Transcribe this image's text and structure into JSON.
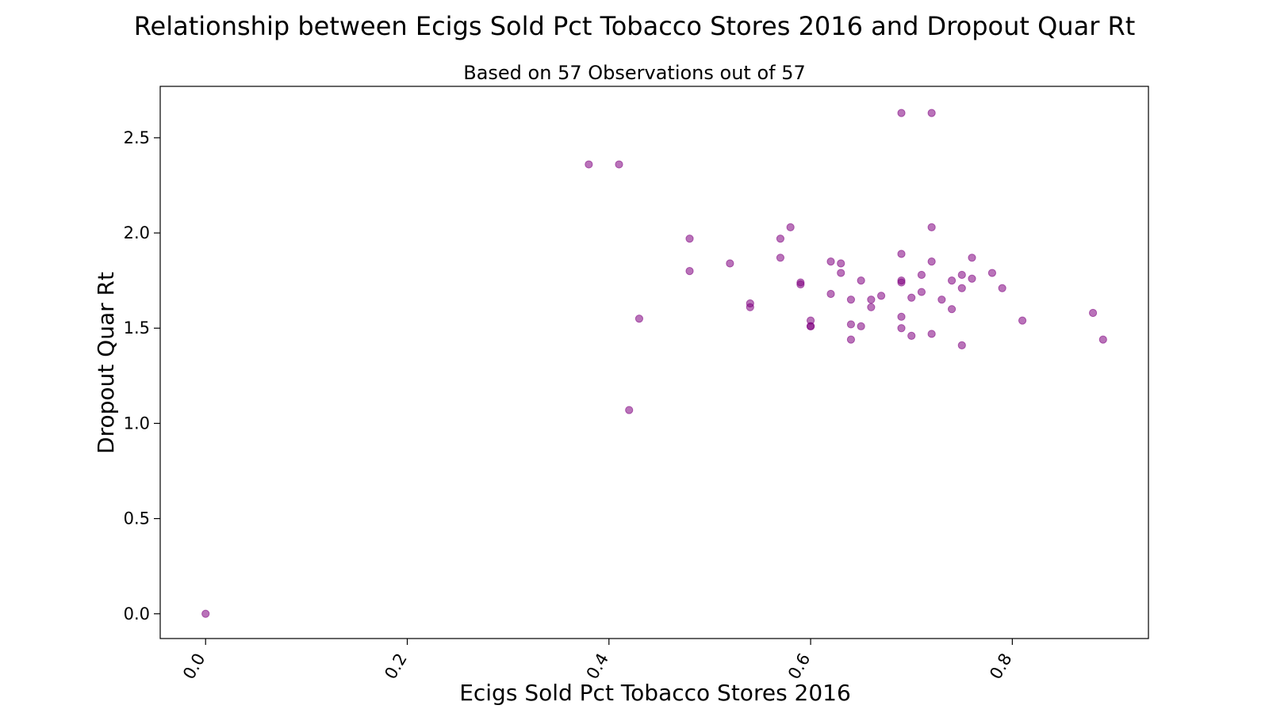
{
  "chart_data": {
    "type": "scatter",
    "title": "Relationship between Ecigs Sold Pct Tobacco Stores 2016 and Dropout Quar Rt",
    "subtitle": "Based on 57 Observations out of 57",
    "xlabel": "Ecigs Sold Pct Tobacco Stores 2016",
    "ylabel": "Dropout Quar Rt",
    "xlim": [
      -0.045,
      0.935
    ],
    "ylim": [
      -0.13,
      2.77
    ],
    "xticks": [
      {
        "value": 0.0,
        "label": "0.0"
      },
      {
        "value": 0.2,
        "label": "0.2"
      },
      {
        "value": 0.4,
        "label": "0.4"
      },
      {
        "value": 0.6,
        "label": "0.6"
      },
      {
        "value": 0.8,
        "label": "0.8"
      }
    ],
    "yticks": [
      {
        "value": 0.0,
        "label": "0.0"
      },
      {
        "value": 0.5,
        "label": "0.5"
      },
      {
        "value": 1.0,
        "label": "1.0"
      },
      {
        "value": 1.5,
        "label": "1.5"
      },
      {
        "value": 2.0,
        "label": "2.0"
      },
      {
        "value": 2.5,
        "label": "2.5"
      }
    ],
    "grid": false,
    "color": "#800080",
    "points": [
      [
        0.0,
        0.0
      ],
      [
        0.38,
        2.36
      ],
      [
        0.41,
        2.36
      ],
      [
        0.42,
        1.07
      ],
      [
        0.43,
        1.55
      ],
      [
        0.48,
        1.97
      ],
      [
        0.48,
        1.8
      ],
      [
        0.52,
        1.84
      ],
      [
        0.54,
        1.63
      ],
      [
        0.54,
        1.61
      ],
      [
        0.57,
        1.97
      ],
      [
        0.57,
        1.87
      ],
      [
        0.58,
        2.03
      ],
      [
        0.59,
        1.74
      ],
      [
        0.59,
        1.73
      ],
      [
        0.6,
        1.54
      ],
      [
        0.6,
        1.51
      ],
      [
        0.6,
        1.51
      ],
      [
        0.62,
        1.85
      ],
      [
        0.62,
        1.68
      ],
      [
        0.63,
        1.84
      ],
      [
        0.63,
        1.79
      ],
      [
        0.64,
        1.65
      ],
      [
        0.64,
        1.52
      ],
      [
        0.64,
        1.44
      ],
      [
        0.65,
        1.75
      ],
      [
        0.65,
        1.51
      ],
      [
        0.66,
        1.65
      ],
      [
        0.66,
        1.61
      ],
      [
        0.67,
        1.67
      ],
      [
        0.69,
        2.63
      ],
      [
        0.69,
        1.89
      ],
      [
        0.69,
        1.75
      ],
      [
        0.69,
        1.74
      ],
      [
        0.69,
        1.56
      ],
      [
        0.69,
        1.5
      ],
      [
        0.7,
        1.66
      ],
      [
        0.7,
        1.46
      ],
      [
        0.71,
        1.78
      ],
      [
        0.71,
        1.69
      ],
      [
        0.72,
        2.63
      ],
      [
        0.72,
        2.03
      ],
      [
        0.72,
        1.85
      ],
      [
        0.72,
        1.47
      ],
      [
        0.73,
        1.65
      ],
      [
        0.74,
        1.75
      ],
      [
        0.74,
        1.6
      ],
      [
        0.75,
        1.78
      ],
      [
        0.75,
        1.71
      ],
      [
        0.75,
        1.41
      ],
      [
        0.76,
        1.87
      ],
      [
        0.76,
        1.76
      ],
      [
        0.78,
        1.79
      ],
      [
        0.79,
        1.71
      ],
      [
        0.81,
        1.54
      ],
      [
        0.88,
        1.58
      ],
      [
        0.89,
        1.44
      ]
    ]
  }
}
